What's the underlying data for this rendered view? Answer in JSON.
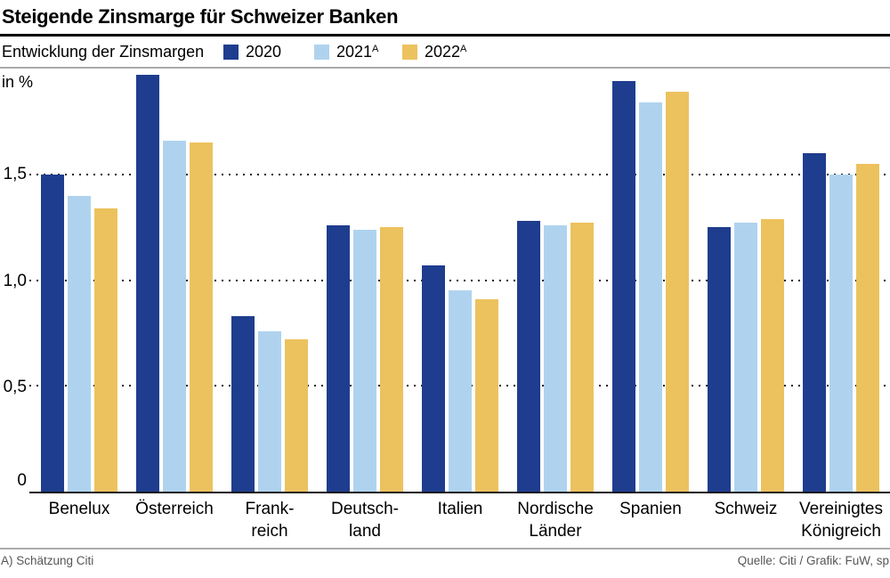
{
  "header": {
    "title": "Steigende Zinsmarge für Schweizer Banken"
  },
  "footer": {
    "left": "A) Schätzung Citi",
    "right": "Quelle: Citi / Grafik: FuW, sp"
  },
  "colors": {
    "series_2020": "#1F3D8E",
    "series_2021": "#AFD3EF",
    "series_2022": "#ECC25E",
    "rule_gray": "#ABABAB",
    "rule_black": "#000000",
    "footer_text": "#565656"
  },
  "chart_data": {
    "type": "bar",
    "title": "Steigende Zinsmarge für Schweizer Banken",
    "subtitle": "Entwicklung der Zinsmargen",
    "unit_label": "in %",
    "legend_position": "top",
    "grid": "dotted horizontal lines at 0.5, 1.0, 1.5",
    "ylim": [
      0,
      2.0
    ],
    "gridlines": [
      0.5,
      1.0,
      1.5
    ],
    "y_ticks": [
      {
        "label": "1,5",
        "value": 1.5
      },
      {
        "label": "1,0",
        "value": 1.0
      },
      {
        "label": "0,5",
        "value": 0.5
      },
      {
        "label": "0",
        "value": 0
      }
    ],
    "categories": [
      "Benelux",
      "Österreich",
      "Frank-\nreich",
      "Deutsch-\nland",
      "Italien",
      "Nordische\nLänder",
      "Spanien",
      "Schweiz",
      "Vereinigtes\nKönigreich"
    ],
    "series": [
      {
        "name": "2020",
        "sup": "",
        "color": "#1F3D8E",
        "values": [
          1.5,
          1.97,
          0.83,
          1.26,
          1.07,
          1.28,
          1.94,
          1.25,
          1.6
        ]
      },
      {
        "name": "2021",
        "sup": "A",
        "color": "#AFD3EF",
        "values": [
          1.4,
          1.66,
          0.76,
          1.24,
          0.95,
          1.26,
          1.84,
          1.27,
          1.5
        ]
      },
      {
        "name": "2022",
        "sup": "A",
        "color": "#ECC25E",
        "values": [
          1.34,
          1.65,
          0.72,
          1.25,
          0.91,
          1.27,
          1.89,
          1.29,
          1.55
        ]
      }
    ]
  }
}
